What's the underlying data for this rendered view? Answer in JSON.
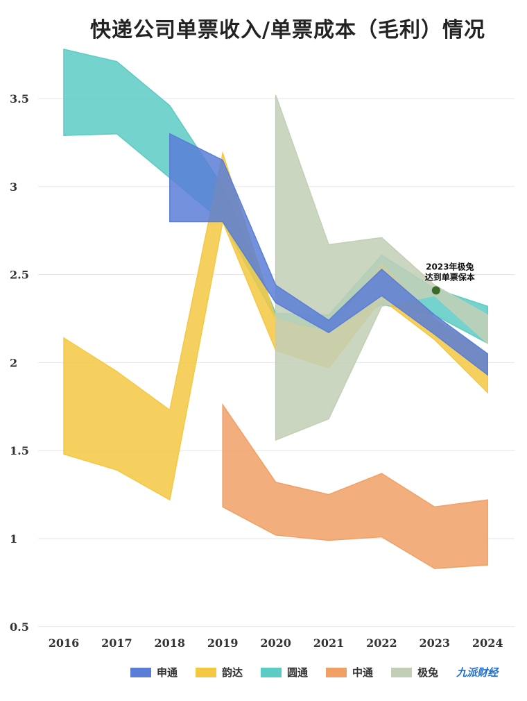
{
  "chart_data": {
    "type": "area",
    "title": "快递公司单票收入/单票成本（毛利）情况",
    "xlabel": "",
    "ylabel": "",
    "x": [
      "2016",
      "2017",
      "2018",
      "2019",
      "2020",
      "2021",
      "2022",
      "2023",
      "2024"
    ],
    "ylim": [
      0.5,
      3.8
    ],
    "yticks": [
      0.5,
      1,
      1.5,
      2,
      2.5,
      3,
      3.5
    ],
    "ytick_labels": [
      "0.5",
      "1",
      "1.5",
      "2",
      "2.5",
      "3",
      "3.5"
    ],
    "grid": true,
    "legend_position": "bottom",
    "series": [
      {
        "name": "圆通",
        "color": "#5ccbc3",
        "upper": [
          3.78,
          3.71,
          3.46,
          3.0,
          2.28,
          2.27,
          2.61,
          2.42,
          2.32
        ],
        "lower": [
          3.29,
          3.3,
          3.05,
          2.8,
          2.25,
          2.18,
          2.33,
          2.27,
          2.11
        ]
      },
      {
        "name": "韵达",
        "color": "#f4c842",
        "upper": [
          2.14,
          1.95,
          1.73,
          3.19,
          2.25,
          2.17,
          2.56,
          2.25,
          2.05
        ],
        "lower": [
          1.48,
          1.39,
          1.22,
          2.8,
          2.07,
          1.97,
          2.36,
          2.13,
          1.83
        ]
      },
      {
        "name": "极兔",
        "color": "#c2cfb6",
        "upper": [
          null,
          null,
          null,
          null,
          3.52,
          2.67,
          2.71,
          2.44,
          2.27
        ],
        "lower": [
          null,
          null,
          null,
          null,
          1.56,
          1.68,
          2.32,
          2.38,
          2.11
        ]
      },
      {
        "name": "申通",
        "color": "#5a7ed6",
        "upper": [
          null,
          null,
          3.3,
          3.15,
          2.44,
          2.24,
          2.53,
          2.27,
          2.05
        ],
        "lower": [
          null,
          null,
          2.8,
          2.8,
          2.34,
          2.17,
          2.38,
          2.16,
          1.93
        ]
      },
      {
        "name": "中通",
        "color": "#f0a066",
        "upper": [
          null,
          null,
          null,
          1.76,
          1.32,
          1.25,
          1.37,
          1.18,
          1.22
        ],
        "lower": [
          null,
          null,
          null,
          1.18,
          1.02,
          0.99,
          1.01,
          0.83,
          0.85
        ]
      }
    ],
    "legend_order": [
      "申通",
      "韵达",
      "圆通",
      "中通",
      "极兔"
    ],
    "annotations": [
      {
        "text_line1": "2023年极兔",
        "text_line2": "达到单票保本",
        "x": "2023",
        "y": 2.41,
        "marker_color": "#3d6b2a"
      }
    ]
  },
  "legend": {
    "items": [
      {
        "label": "申通",
        "color": "#5a7ed6"
      },
      {
        "label": "韵达",
        "color": "#f4c842"
      },
      {
        "label": "圆通",
        "color": "#5ccbc3"
      },
      {
        "label": "中通",
        "color": "#f0a066"
      },
      {
        "label": "极兔",
        "color": "#c2cfb6"
      }
    ],
    "brand": "九派财经"
  }
}
